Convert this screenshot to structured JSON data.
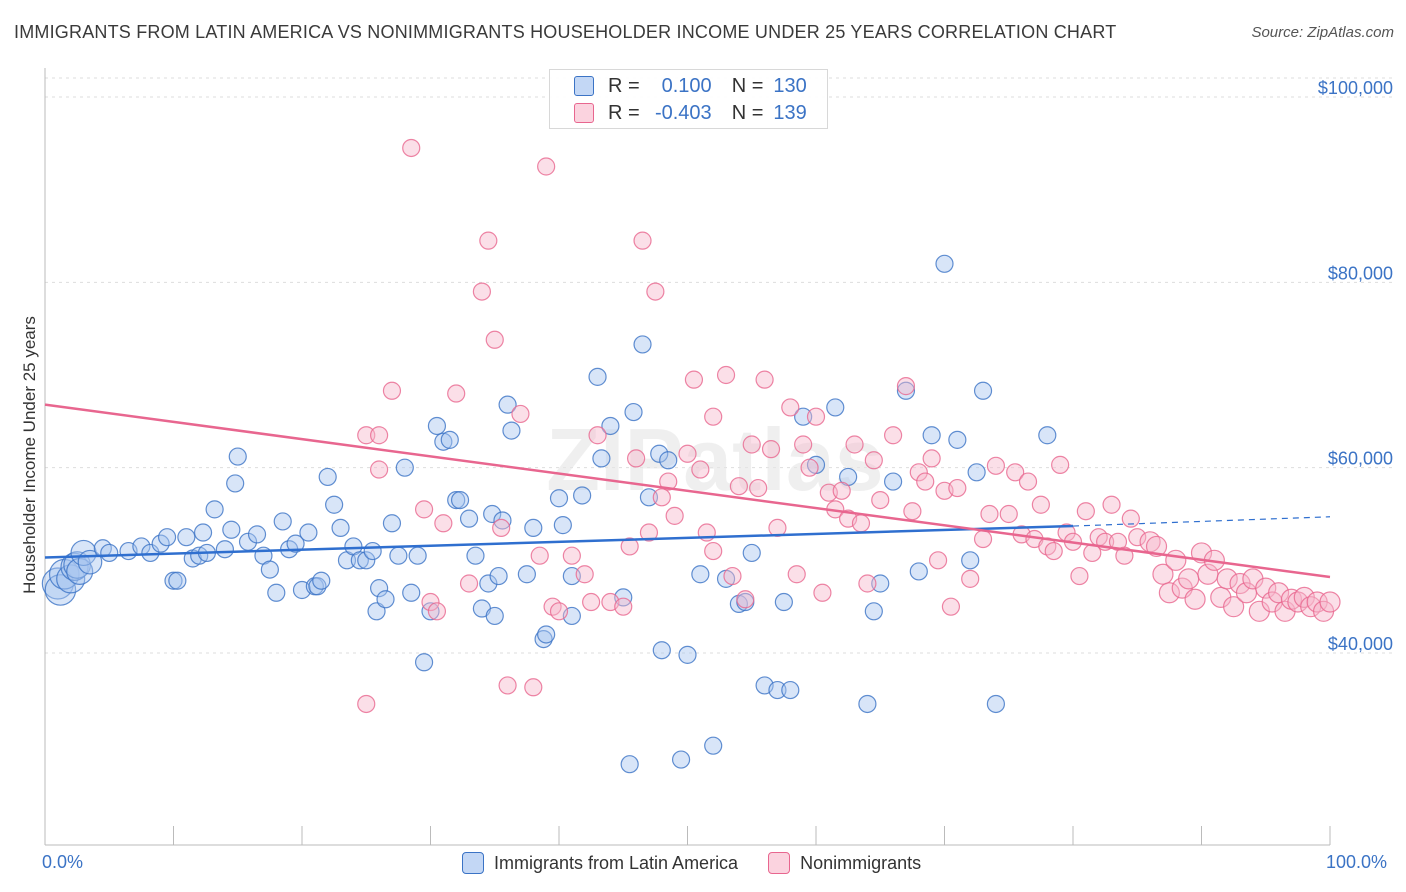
{
  "title": "IMMIGRANTS FROM LATIN AMERICA VS NONIMMIGRANTS HOUSEHOLDER INCOME UNDER 25 YEARS CORRELATION CHART",
  "source": "Source: ZipAtlas.com",
  "watermark": "ZIPatlas",
  "legend_top": {
    "r_label": "R =",
    "n_label": "N =",
    "rows": [
      {
        "r": "0.100",
        "n": "130"
      },
      {
        "r": "-0.403",
        "n": "139"
      }
    ]
  },
  "legend_bottom": {
    "items": [
      "Immigrants from Latin America",
      "Nonimmigrants"
    ]
  },
  "colors": {
    "blue": "#3b73c5",
    "blue_fill": "#a9c6ef",
    "blue_line": "#2f6fcf",
    "pink_fill": "#f6b8cb",
    "pink_line": "#e8668f",
    "axis_text": "#3b73c5",
    "grid": "#dddddd"
  },
  "chart_data": {
    "type": "scatter",
    "title": "IMMIGRANTS FROM LATIN AMERICA VS NONIMMIGRANTS HOUSEHOLDER INCOME UNDER 25 YEARS CORRELATION CHART",
    "xlabel": "",
    "ylabel": "Householder Income Under 25 years",
    "x_tick_labels": [
      "0.0%",
      "100.0%"
    ],
    "y_tick_labels": [
      "$40,000",
      "$60,000",
      "$80,000",
      "$100,000"
    ],
    "y_ticks": [
      40000,
      60000,
      80000,
      100000
    ],
    "xlim": [
      0,
      100
    ],
    "ylim": [
      20000,
      102000
    ],
    "grid": "horizontal dashed",
    "legend_position": "top-center",
    "series": [
      {
        "name": "Immigrants from Latin America",
        "color": "#3b73c5",
        "r": 0.1,
        "n": 130,
        "trend": {
          "x": [
            0,
            80
          ],
          "y": [
            50300,
            53700
          ],
          "dashed_to": [
            100,
            54700
          ]
        },
        "points": [
          [
            1,
            47.5
          ],
          [
            1.2,
            46.8
          ],
          [
            1.5,
            48.5
          ],
          [
            2,
            48
          ],
          [
            2.3,
            49.3
          ],
          [
            2.5,
            49.5
          ],
          [
            2.7,
            48.8
          ],
          [
            3,
            50.8
          ],
          [
            3.5,
            49.8
          ],
          [
            4.5,
            51.3
          ],
          [
            5,
            50.8
          ],
          [
            6.5,
            51
          ],
          [
            7.5,
            51.5
          ],
          [
            8.2,
            50.8
          ],
          [
            9,
            51.8
          ],
          [
            9.5,
            52.5
          ],
          [
            10,
            47.8
          ],
          [
            10.3,
            47.8
          ],
          [
            11,
            52.5
          ],
          [
            11.5,
            50.2
          ],
          [
            12,
            50.5
          ],
          [
            12.3,
            53
          ],
          [
            12.6,
            50.8
          ],
          [
            13.2,
            55.5
          ],
          [
            14,
            51.2
          ],
          [
            14.5,
            53.3
          ],
          [
            14.8,
            58.3
          ],
          [
            15,
            61.2
          ],
          [
            15.8,
            52
          ],
          [
            16.5,
            52.8
          ],
          [
            17,
            50.5
          ],
          [
            17.5,
            49
          ],
          [
            18,
            46.5
          ],
          [
            18.5,
            54.2
          ],
          [
            19,
            51.2
          ],
          [
            19.5,
            51.8
          ],
          [
            20,
            46.8
          ],
          [
            20.5,
            53
          ],
          [
            21,
            47.2
          ],
          [
            21.2,
            47.2
          ],
          [
            21.5,
            47.8
          ],
          [
            22,
            59
          ],
          [
            22.5,
            56
          ],
          [
            23,
            53.5
          ],
          [
            23.5,
            50
          ],
          [
            24,
            51.5
          ],
          [
            24.5,
            50
          ],
          [
            25,
            50
          ],
          [
            25.5,
            51
          ],
          [
            25.8,
            44.5
          ],
          [
            26,
            47
          ],
          [
            26.5,
            45.8
          ],
          [
            27,
            54
          ],
          [
            27.5,
            50.5
          ],
          [
            28,
            60
          ],
          [
            28.5,
            46.5
          ],
          [
            29,
            50.5
          ],
          [
            29.5,
            39
          ],
          [
            30,
            44.5
          ],
          [
            30.5,
            64.5
          ],
          [
            31,
            62.8
          ],
          [
            31.5,
            63
          ],
          [
            32,
            56.5
          ],
          [
            32.3,
            56.5
          ],
          [
            33,
            54.5
          ],
          [
            33.5,
            50.5
          ],
          [
            34,
            44.8
          ],
          [
            34.5,
            47.5
          ],
          [
            34.8,
            55
          ],
          [
            35,
            44
          ],
          [
            35.3,
            48.3
          ],
          [
            35.6,
            54.3
          ],
          [
            36,
            66.8
          ],
          [
            36.3,
            64
          ],
          [
            37.5,
            48.5
          ],
          [
            38,
            53.5
          ],
          [
            38.8,
            41.5
          ],
          [
            39,
            42
          ],
          [
            40,
            56.7
          ],
          [
            40.3,
            53.8
          ],
          [
            41,
            48.3
          ],
          [
            41,
            44
          ],
          [
            41.8,
            57
          ],
          [
            43,
            69.8
          ],
          [
            43.3,
            61
          ],
          [
            44,
            64.5
          ],
          [
            45,
            46
          ],
          [
            45.5,
            28
          ],
          [
            45.8,
            66
          ],
          [
            46.5,
            73.3
          ],
          [
            47,
            56.8
          ],
          [
            47.8,
            61.5
          ],
          [
            48,
            40.3
          ],
          [
            48.5,
            60.8
          ],
          [
            49.5,
            28.5
          ],
          [
            50,
            39.8
          ],
          [
            51,
            48.5
          ],
          [
            52,
            30
          ],
          [
            53,
            48
          ],
          [
            54,
            45.3
          ],
          [
            54.5,
            45.5
          ],
          [
            55,
            50.8
          ],
          [
            56,
            36.5
          ],
          [
            57,
            36
          ],
          [
            57.5,
            45.5
          ],
          [
            58,
            36
          ],
          [
            59,
            65.5
          ],
          [
            60,
            60.3
          ],
          [
            61.5,
            66.5
          ],
          [
            62.5,
            59
          ],
          [
            64,
            34.5
          ],
          [
            64.5,
            44.5
          ],
          [
            65,
            47.5
          ],
          [
            66,
            58.5
          ],
          [
            67,
            68.3
          ],
          [
            68,
            48.8
          ],
          [
            69,
            63.5
          ],
          [
            70,
            82
          ],
          [
            71,
            63
          ],
          [
            72,
            50
          ],
          [
            72.5,
            59.5
          ],
          [
            73,
            68.3
          ],
          [
            74,
            34.5
          ],
          [
            78,
            63.5
          ]
        ]
      },
      {
        "name": "Nonimmigrants",
        "color": "#e8668f",
        "r": -0.403,
        "n": 139,
        "trend": {
          "x": [
            0,
            100
          ],
          "y": [
            66800,
            48200
          ]
        },
        "points": [
          [
            25,
            63.5
          ],
          [
            25,
            34.5
          ],
          [
            26,
            59.8
          ],
          [
            26,
            63.5
          ],
          [
            27,
            68.3
          ],
          [
            28.5,
            94.5
          ],
          [
            29.5,
            55.5
          ],
          [
            30,
            45.5
          ],
          [
            30.5,
            44.5
          ],
          [
            31,
            54
          ],
          [
            32,
            68
          ],
          [
            33,
            47.5
          ],
          [
            34,
            79
          ],
          [
            34.5,
            84.5
          ],
          [
            35,
            73.8
          ],
          [
            35.5,
            53.5
          ],
          [
            36,
            36.5
          ],
          [
            37,
            65.8
          ],
          [
            38,
            36.3
          ],
          [
            38.5,
            50.5
          ],
          [
            39,
            92.5
          ],
          [
            39.5,
            45
          ],
          [
            40,
            44.5
          ],
          [
            41,
            50.5
          ],
          [
            42,
            48.5
          ],
          [
            42.5,
            45.5
          ],
          [
            43,
            63.5
          ],
          [
            44,
            45.5
          ],
          [
            45,
            45
          ],
          [
            45.5,
            51.5
          ],
          [
            46,
            61
          ],
          [
            46.5,
            84.5
          ],
          [
            47,
            53
          ],
          [
            47.5,
            79
          ],
          [
            48,
            56.8
          ],
          [
            48.5,
            58.5
          ],
          [
            49,
            54.8
          ],
          [
            50,
            61.5
          ],
          [
            50.5,
            69.5
          ],
          [
            51,
            59.8
          ],
          [
            51.5,
            53
          ],
          [
            52,
            51
          ],
          [
            52,
            65.5
          ],
          [
            53,
            70
          ],
          [
            53.5,
            48.3
          ],
          [
            54,
            58
          ],
          [
            54.5,
            45.8
          ],
          [
            55,
            62.5
          ],
          [
            55.5,
            57.8
          ],
          [
            56,
            69.5
          ],
          [
            56.5,
            62
          ],
          [
            57,
            53.5
          ],
          [
            58,
            66.5
          ],
          [
            58.5,
            48.5
          ],
          [
            59,
            62.5
          ],
          [
            59.5,
            60
          ],
          [
            60,
            65.5
          ],
          [
            60.5,
            46.5
          ],
          [
            61,
            57.3
          ],
          [
            61.5,
            55.5
          ],
          [
            62,
            57.5
          ],
          [
            62.5,
            54.5
          ],
          [
            63,
            62.5
          ],
          [
            63.5,
            54
          ],
          [
            64,
            47.5
          ],
          [
            64.5,
            60.8
          ],
          [
            65,
            56.5
          ],
          [
            66,
            63.5
          ],
          [
            67,
            68.8
          ],
          [
            67.5,
            55.3
          ],
          [
            68,
            59.5
          ],
          [
            68.5,
            58.5
          ],
          [
            69,
            61
          ],
          [
            69.5,
            50
          ],
          [
            70,
            57.5
          ],
          [
            70.5,
            45
          ],
          [
            71,
            57.8
          ],
          [
            72,
            48
          ],
          [
            73,
            52.3
          ],
          [
            73.5,
            55
          ],
          [
            74,
            60.2
          ],
          [
            75,
            55
          ],
          [
            75.5,
            59.5
          ],
          [
            76,
            52.8
          ],
          [
            76.5,
            58.5
          ],
          [
            77,
            52.3
          ],
          [
            77.5,
            56
          ],
          [
            78,
            51.5
          ],
          [
            78.5,
            51
          ],
          [
            79,
            60.3
          ],
          [
            79.5,
            53
          ],
          [
            80,
            52
          ],
          [
            80.5,
            48.3
          ],
          [
            81,
            55.3
          ],
          [
            81.5,
            50.8
          ],
          [
            82,
            52.5
          ],
          [
            82.5,
            52
          ],
          [
            83,
            56
          ],
          [
            83.5,
            52
          ],
          [
            84,
            50.5
          ],
          [
            84.5,
            54.5
          ],
          [
            85,
            52.5
          ],
          [
            86,
            52
          ],
          [
            86.5,
            51.5
          ],
          [
            87,
            48.5
          ],
          [
            87.5,
            46.5
          ],
          [
            88,
            50
          ],
          [
            88.5,
            47
          ],
          [
            89,
            48
          ],
          [
            89.5,
            45.8
          ],
          [
            90,
            50.8
          ],
          [
            90.5,
            48.5
          ],
          [
            91,
            50
          ],
          [
            91.5,
            46
          ],
          [
            92,
            48
          ],
          [
            92.5,
            45
          ],
          [
            93,
            47.5
          ],
          [
            93.5,
            46.5
          ],
          [
            94,
            48
          ],
          [
            94.5,
            44.5
          ],
          [
            95,
            47
          ],
          [
            95.5,
            45.5
          ],
          [
            96,
            46.5
          ],
          [
            96.5,
            44.5
          ],
          [
            97,
            45.8
          ],
          [
            97.5,
            45.5
          ],
          [
            98,
            46
          ],
          [
            98.5,
            45
          ],
          [
            99,
            45.5
          ],
          [
            99.5,
            44.5
          ],
          [
            100,
            45.5
          ]
        ]
      }
    ]
  }
}
